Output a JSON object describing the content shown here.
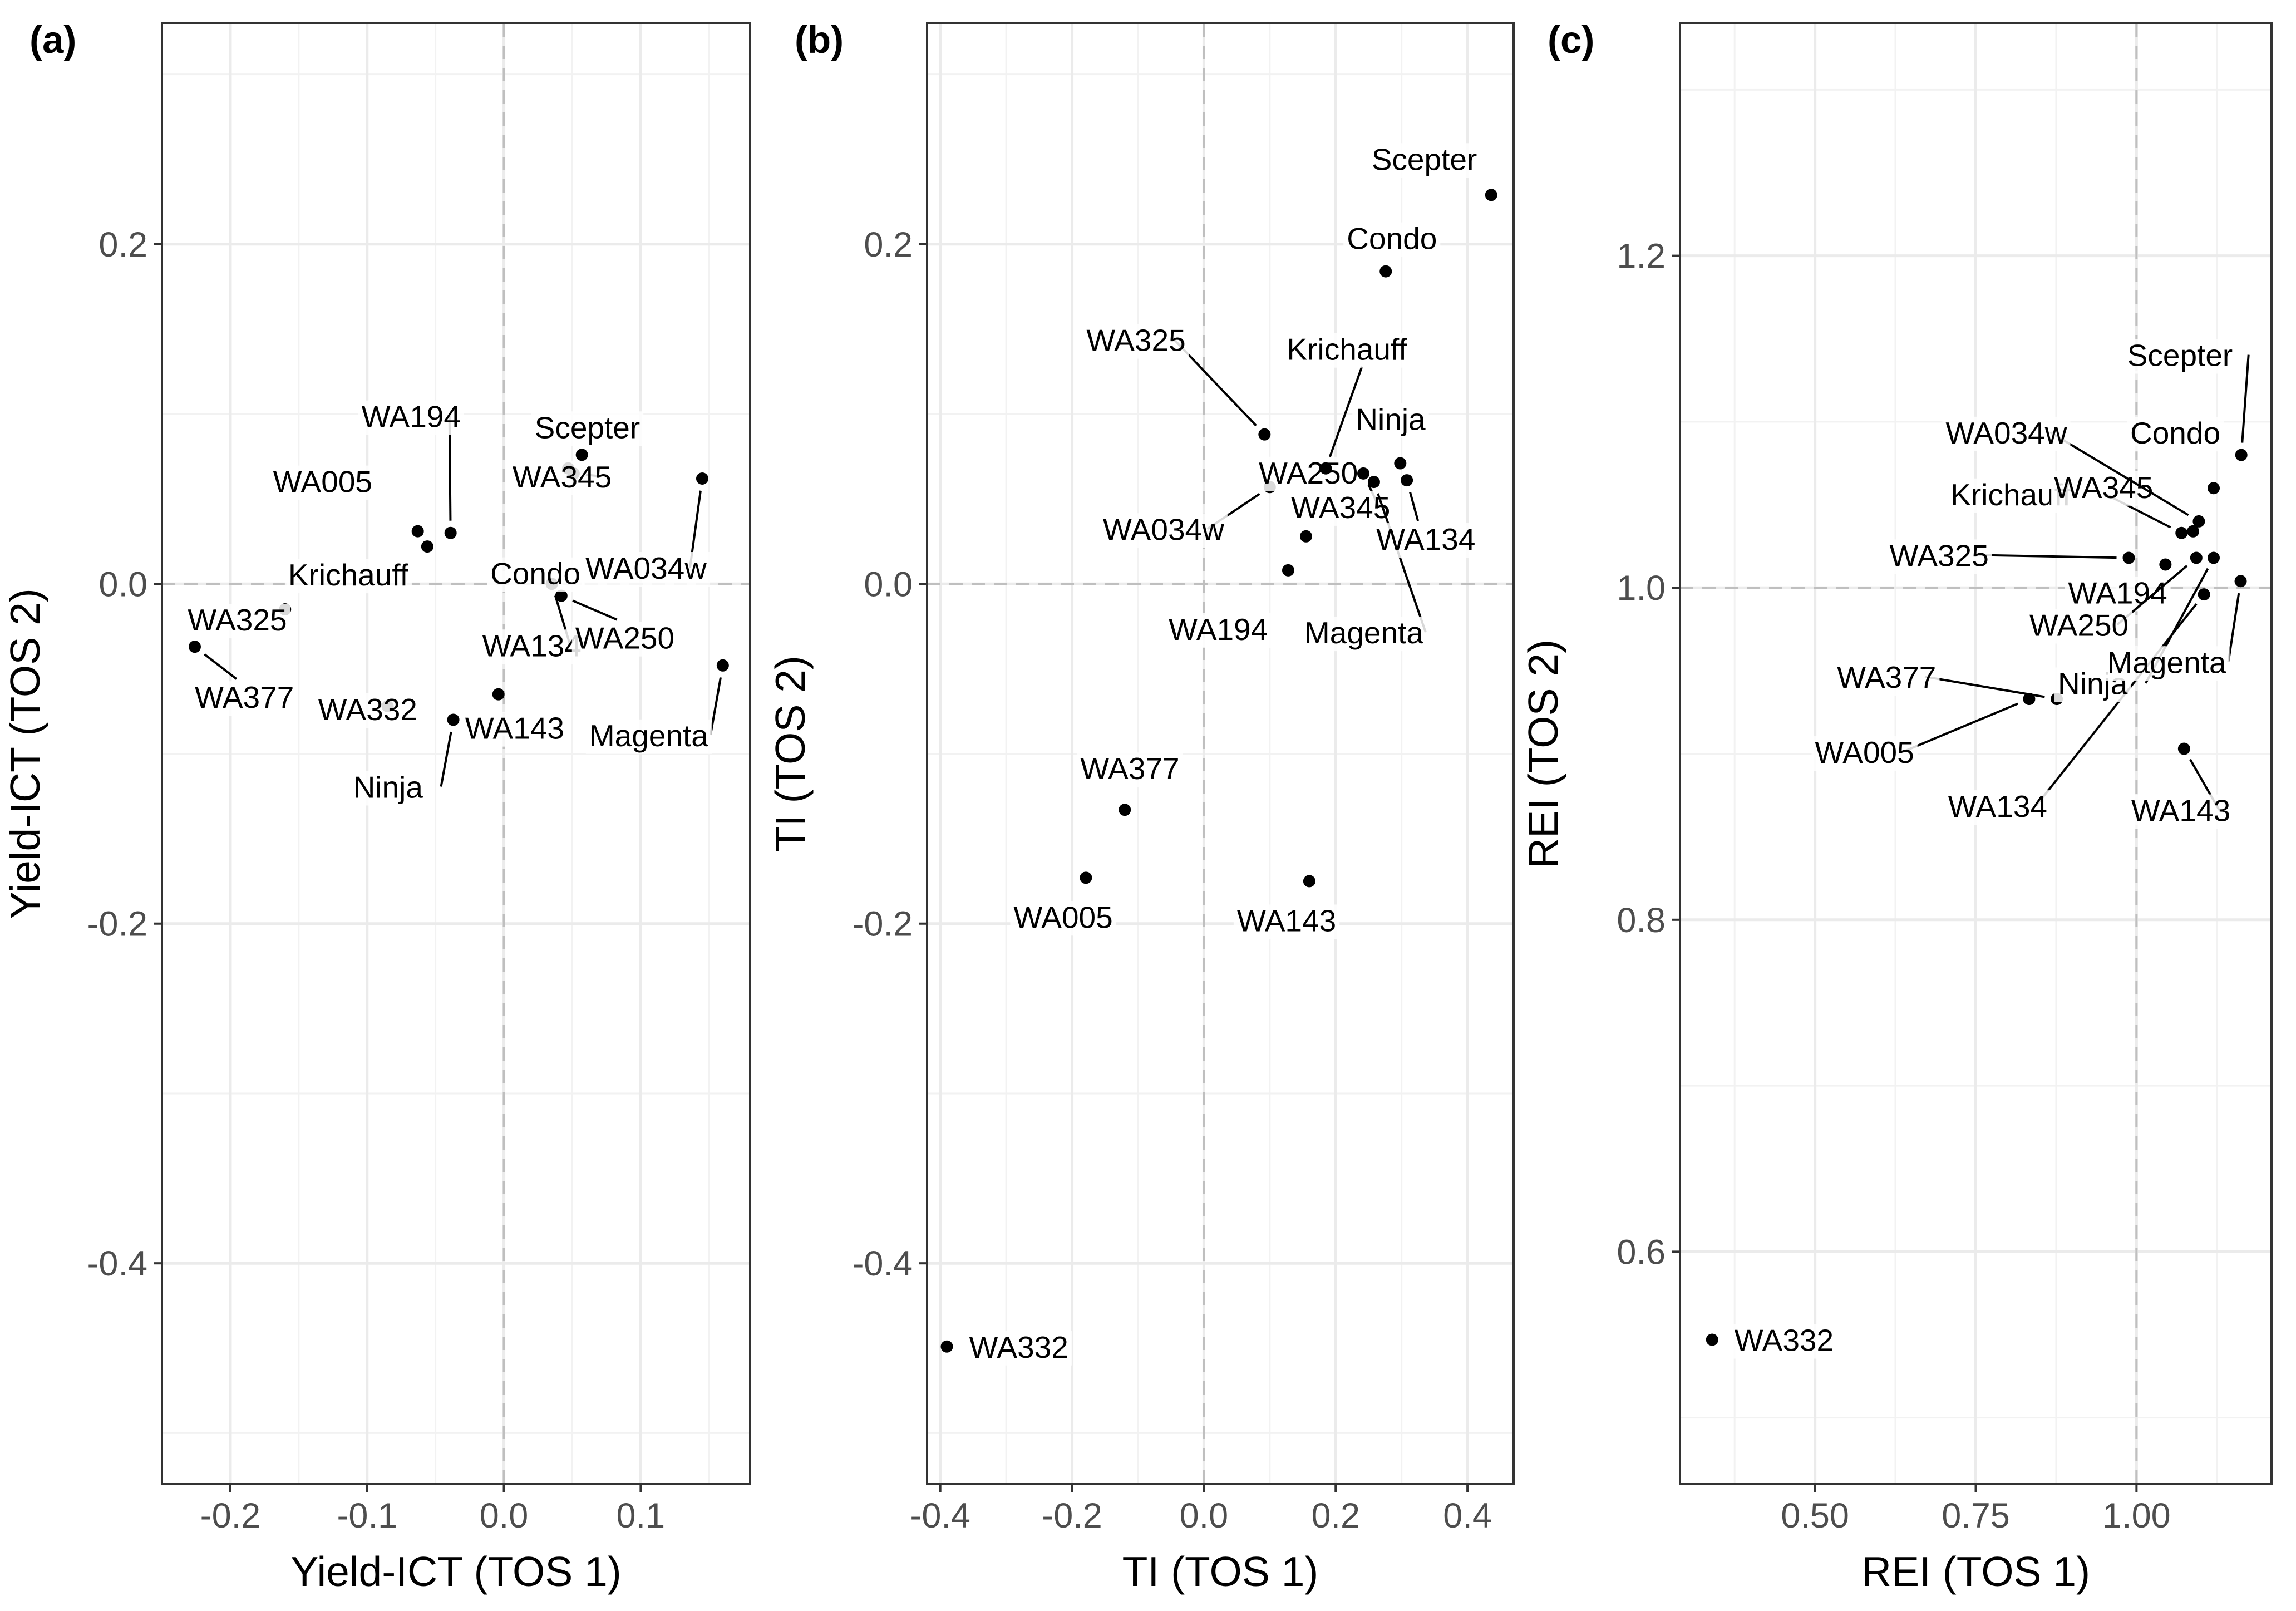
{
  "chart_data": [
    {
      "type": "scatter",
      "panel_label": "(a)",
      "xlabel": "Yield-ICT (TOS 1)",
      "ylabel": "Yield-ICT (TOS 2)",
      "xlim": [
        -0.25,
        0.18
      ],
      "ylim": [
        -0.53,
        0.33
      ],
      "xticks": [
        -0.2,
        -0.1,
        0.0,
        0.1
      ],
      "xtick_labels": [
        "-0.2",
        "-0.1",
        "0.0",
        "0.1"
      ],
      "yticks": [
        -0.4,
        -0.2,
        0.0,
        0.2
      ],
      "ytick_labels": [
        "-0.4",
        "-0.2",
        "0.0",
        "0.2"
      ],
      "ref_x": 0.0,
      "ref_y": 0.0,
      "grid": true,
      "points": [
        {
          "name": "WA377",
          "x": -0.226,
          "y": -0.037
        },
        {
          "name": "WA325",
          "x": -0.16,
          "y": -0.015
        },
        {
          "name": "WA332",
          "x": -0.085,
          "y": -0.072
        },
        {
          "name": "WA005",
          "x": -0.063,
          "y": 0.031
        },
        {
          "name": "Krichauff",
          "x": -0.056,
          "y": 0.022
        },
        {
          "name": "WA194",
          "x": -0.039,
          "y": 0.03
        },
        {
          "name": "Ninja",
          "x": -0.037,
          "y": -0.08
        },
        {
          "name": "WA143",
          "x": -0.004,
          "y": -0.065
        },
        {
          "name": "WA134",
          "x": 0.035,
          "y": 0.0
        },
        {
          "name": "WA250",
          "x": 0.042,
          "y": -0.007
        },
        {
          "name": "Condo",
          "x": 0.047,
          "y": 0.068
        },
        {
          "name": "WA345",
          "x": 0.051,
          "y": 0.065
        },
        {
          "name": "Scepter",
          "x": 0.057,
          "y": 0.076
        },
        {
          "name": "WA034w",
          "x": 0.145,
          "y": 0.062
        },
        {
          "name": "Magenta",
          "x": 0.16,
          "y": -0.048
        }
      ]
    },
    {
      "type": "scatter",
      "panel_label": "(b)",
      "xlabel": "TI (TOS 1)",
      "ylabel": "TI (TOS 2)",
      "xlim": [
        -0.42,
        0.47
      ],
      "ylim": [
        -0.53,
        0.33
      ],
      "xticks": [
        -0.4,
        -0.2,
        0.0,
        0.2,
        0.4
      ],
      "xtick_labels": [
        "-0.4",
        "-0.2",
        "0.0",
        "0.2",
        "0.4"
      ],
      "yticks": [
        -0.4,
        -0.2,
        0.0,
        0.2
      ],
      "ytick_labels": [
        "-0.4",
        "-0.2",
        "0.0",
        "0.2"
      ],
      "ref_x": 0.0,
      "ref_y": 0.0,
      "grid": true,
      "points": [
        {
          "name": "WA332",
          "x": -0.39,
          "y": -0.449
        },
        {
          "name": "WA005",
          "x": -0.179,
          "y": -0.173
        },
        {
          "name": "WA377",
          "x": -0.12,
          "y": -0.133
        },
        {
          "name": "WA034w",
          "x": 0.1,
          "y": 0.057
        },
        {
          "name": "WA194",
          "x": 0.128,
          "y": 0.008
        },
        {
          "name": "WA250",
          "x": 0.155,
          "y": 0.028
        },
        {
          "name": "WA143",
          "x": 0.16,
          "y": -0.175
        },
        {
          "name": "Krichauff",
          "x": 0.185,
          "y": 0.068
        },
        {
          "name": "WA325",
          "x": 0.092,
          "y": 0.088
        },
        {
          "name": "WA345",
          "x": 0.242,
          "y": 0.065
        },
        {
          "name": "Condo",
          "x": 0.276,
          "y": 0.184
        },
        {
          "name": "Magenta",
          "x": 0.258,
          "y": 0.06
        },
        {
          "name": "Ninja",
          "x": 0.298,
          "y": 0.071
        },
        {
          "name": "WA134",
          "x": 0.308,
          "y": 0.061
        },
        {
          "name": "Scepter",
          "x": 0.436,
          "y": 0.229
        }
      ]
    },
    {
      "type": "scatter",
      "panel_label": "(c)",
      "xlabel": "REI (TOS 1)",
      "ylabel": "REI (TOS 2)",
      "xlim": [
        0.29,
        1.21
      ],
      "ylim": [
        0.46,
        1.34
      ],
      "xticks": [
        0.5,
        0.75,
        1.0
      ],
      "xtick_labels": [
        "0.50",
        "0.75",
        "1.00"
      ],
      "yticks": [
        0.6,
        0.8,
        1.0,
        1.2
      ],
      "ytick_labels": [
        "0.6",
        "0.8",
        "1.0",
        "1.2"
      ],
      "ref_x": 1.0,
      "ref_y": 1.0,
      "grid": true,
      "points": [
        {
          "name": "WA332",
          "x": 0.34,
          "y": 0.547
        },
        {
          "name": "WA005",
          "x": 0.833,
          "y": 0.933
        },
        {
          "name": "WA377",
          "x": 0.876,
          "y": 0.933
        },
        {
          "name": "WA325",
          "x": 0.988,
          "y": 1.018
        },
        {
          "name": "WA194",
          "x": 1.045,
          "y": 1.014
        },
        {
          "name": "Krichauff",
          "x": 1.07,
          "y": 1.033
        },
        {
          "name": "WA250",
          "x": 1.093,
          "y": 1.018
        },
        {
          "name": "WA143",
          "x": 1.074,
          "y": 0.903
        },
        {
          "name": "WA345",
          "x": 1.088,
          "y": 1.034
        },
        {
          "name": "WA034w",
          "x": 1.097,
          "y": 1.04
        },
        {
          "name": "WA134",
          "x": 1.105,
          "y": 0.996
        },
        {
          "name": "Ninja",
          "x": 1.12,
          "y": 1.018
        },
        {
          "name": "Condo",
          "x": 1.12,
          "y": 1.06
        },
        {
          "name": "Magenta",
          "x": 1.162,
          "y": 1.004
        },
        {
          "name": "Scepter",
          "x": 1.163,
          "y": 1.08
        }
      ]
    }
  ]
}
